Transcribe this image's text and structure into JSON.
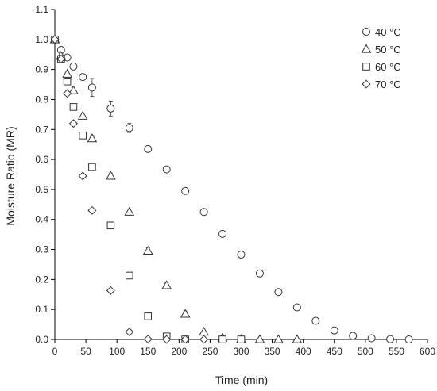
{
  "chart_data": {
    "type": "scatter",
    "title": "",
    "xlabel": "Time (min)",
    "ylabel": "Moisture Ratio (MR)",
    "xlim": [
      0,
      600
    ],
    "ylim": [
      0,
      1.1
    ],
    "xticks": [
      "0",
      "50",
      "100",
      "150",
      "200",
      "250",
      "300",
      "350",
      "400",
      "450",
      "500",
      "550",
      "600"
    ],
    "yticks": [
      "0.0",
      "0.1",
      "0.2",
      "0.3",
      "0.4",
      "0.5",
      "0.6",
      "0.7",
      "0.8",
      "0.9",
      "1.0",
      "1.1"
    ],
    "grid": false,
    "legend_position": "top-right",
    "series": [
      {
        "name": "40 °C",
        "marker": "circle",
        "points": [
          {
            "x": 0,
            "y": 1.0,
            "err": 0.0
          },
          {
            "x": 10,
            "y": 0.965,
            "err": 0.01
          },
          {
            "x": 20,
            "y": 0.94,
            "err": 0.01
          },
          {
            "x": 30,
            "y": 0.91,
            "err": 0.01
          },
          {
            "x": 45,
            "y": 0.875,
            "err": 0.01
          },
          {
            "x": 60,
            "y": 0.84,
            "err": 0.03
          },
          {
            "x": 90,
            "y": 0.77,
            "err": 0.025
          },
          {
            "x": 120,
            "y": 0.705,
            "err": 0.015
          },
          {
            "x": 150,
            "y": 0.635,
            "err": 0.01
          },
          {
            "x": 180,
            "y": 0.567,
            "err": 0.01
          },
          {
            "x": 210,
            "y": 0.495,
            "err": 0.01
          },
          {
            "x": 240,
            "y": 0.425,
            "err": 0.01
          },
          {
            "x": 270,
            "y": 0.352,
            "err": 0.005
          },
          {
            "x": 300,
            "y": 0.283,
            "err": 0.005
          },
          {
            "x": 330,
            "y": 0.22,
            "err": 0.005
          },
          {
            "x": 360,
            "y": 0.158,
            "err": 0.005
          },
          {
            "x": 390,
            "y": 0.107,
            "err": 0.005
          },
          {
            "x": 420,
            "y": 0.062,
            "err": 0.005
          },
          {
            "x": 450,
            "y": 0.03,
            "err": 0.005
          },
          {
            "x": 480,
            "y": 0.012,
            "err": 0.003
          },
          {
            "x": 510,
            "y": 0.004,
            "err": 0.0
          },
          {
            "x": 540,
            "y": 0.001,
            "err": 0.0
          },
          {
            "x": 570,
            "y": 0.0,
            "err": 0.0
          }
        ]
      },
      {
        "name": "50 °C",
        "marker": "triangle",
        "points": [
          {
            "x": 0,
            "y": 1.0,
            "err": 0.0
          },
          {
            "x": 10,
            "y": 0.945,
            "err": 0.01
          },
          {
            "x": 20,
            "y": 0.885,
            "err": 0.01
          },
          {
            "x": 30,
            "y": 0.83,
            "err": 0.01
          },
          {
            "x": 45,
            "y": 0.745,
            "err": 0.01
          },
          {
            "x": 60,
            "y": 0.67,
            "err": 0.01
          },
          {
            "x": 90,
            "y": 0.545,
            "err": 0.01
          },
          {
            "x": 120,
            "y": 0.425,
            "err": 0.01
          },
          {
            "x": 150,
            "y": 0.295,
            "err": 0.01
          },
          {
            "x": 180,
            "y": 0.18,
            "err": 0.01
          },
          {
            "x": 210,
            "y": 0.085,
            "err": 0.01
          },
          {
            "x": 240,
            "y": 0.025,
            "err": 0.005
          },
          {
            "x": 270,
            "y": 0.005,
            "err": 0.0
          },
          {
            "x": 300,
            "y": 0.001,
            "err": 0.0
          },
          {
            "x": 330,
            "y": 0.0,
            "err": 0.0
          },
          {
            "x": 360,
            "y": 0.0,
            "err": 0.0
          },
          {
            "x": 390,
            "y": 0.0,
            "err": 0.0
          }
        ]
      },
      {
        "name": "60 °C",
        "marker": "square",
        "points": [
          {
            "x": 0,
            "y": 1.0,
            "err": 0.0
          },
          {
            "x": 10,
            "y": 0.935,
            "err": 0.01
          },
          {
            "x": 20,
            "y": 0.86,
            "err": 0.01
          },
          {
            "x": 30,
            "y": 0.775,
            "err": 0.01
          },
          {
            "x": 45,
            "y": 0.68,
            "err": 0.01
          },
          {
            "x": 60,
            "y": 0.575,
            "err": 0.01
          },
          {
            "x": 90,
            "y": 0.38,
            "err": 0.01
          },
          {
            "x": 120,
            "y": 0.213,
            "err": 0.01
          },
          {
            "x": 150,
            "y": 0.077,
            "err": 0.01
          },
          {
            "x": 180,
            "y": 0.01,
            "err": 0.005
          },
          {
            "x": 210,
            "y": 0.0,
            "err": 0.0
          },
          {
            "x": 270,
            "y": 0.0,
            "err": 0.0
          },
          {
            "x": 300,
            "y": 0.0,
            "err": 0.0
          }
        ]
      },
      {
        "name": "70 °C",
        "marker": "diamond",
        "points": [
          {
            "x": 0,
            "y": 1.0,
            "err": 0.0
          },
          {
            "x": 10,
            "y": 0.935,
            "err": 0.0
          },
          {
            "x": 20,
            "y": 0.82,
            "err": 0.0
          },
          {
            "x": 30,
            "y": 0.72,
            "err": 0.0
          },
          {
            "x": 45,
            "y": 0.545,
            "err": 0.0
          },
          {
            "x": 60,
            "y": 0.43,
            "err": 0.0
          },
          {
            "x": 90,
            "y": 0.163,
            "err": 0.0
          },
          {
            "x": 120,
            "y": 0.025,
            "err": 0.0
          },
          {
            "x": 150,
            "y": 0.001,
            "err": 0.0
          },
          {
            "x": 180,
            "y": 0.0,
            "err": 0.0
          },
          {
            "x": 210,
            "y": 0.0,
            "err": 0.0
          },
          {
            "x": 240,
            "y": 0.0,
            "err": 0.0
          }
        ]
      }
    ]
  },
  "legend": {
    "items": [
      {
        "label": "40 °C",
        "marker": "circle"
      },
      {
        "label": "50 °C",
        "marker": "triangle"
      },
      {
        "label": "60 °C",
        "marker": "square"
      },
      {
        "label": "70 °C",
        "marker": "diamond"
      }
    ]
  },
  "colors": {
    "marker_stroke": "#333333",
    "axis": "#000000",
    "text": "#222222"
  }
}
